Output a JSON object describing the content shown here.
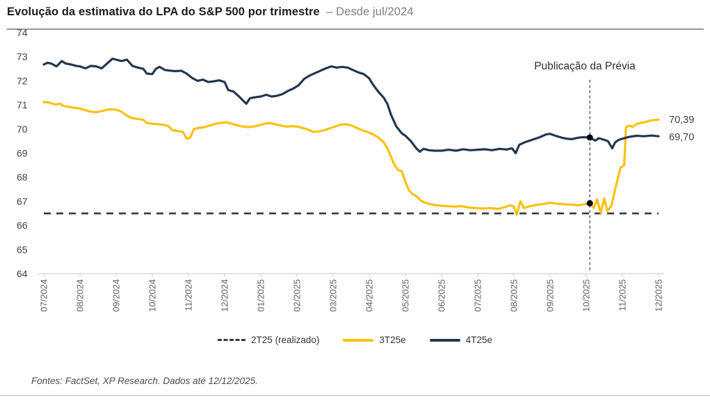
{
  "header": {
    "title_main": "Evolução da estimativa do LPA do S&P 500 por trimestre",
    "title_sub": "– Desde jul/2024"
  },
  "footer": {
    "source": "Fontes: FactSet, XP Research. Dados até 12/12/2025."
  },
  "chart_data": {
    "type": "line",
    "title": "Evolução da estimativa do LPA do S&P 500 por trimestre – Desde jul/2024",
    "xlabel": "",
    "ylabel": "",
    "ylim": [
      64,
      74
    ],
    "grid": false,
    "y_ticks": [
      "74",
      "73",
      "72",
      "71",
      "70",
      "69",
      "68",
      "67",
      "66",
      "65",
      "64"
    ],
    "y_tick_values": [
      74,
      73,
      72,
      71,
      70,
      69,
      68,
      67,
      66,
      65,
      64
    ],
    "x_ticks": [
      "07/2024",
      "08/2024",
      "09/2024",
      "10/2024",
      "11/2024",
      "12/2024",
      "01/2025",
      "02/2025",
      "03/2025",
      "04/2025",
      "05/2025",
      "06/2025",
      "07/2025",
      "08/2025",
      "09/2025",
      "10/2025",
      "11/2025",
      "12/2025"
    ],
    "legend": {
      "position": "bottom center"
    },
    "series": [
      {
        "name": "2T25 (realizado)",
        "style": "dashed",
        "color": "#3A3A3A",
        "points": [
          [
            0,
            66.5
          ],
          [
            17,
            66.5
          ]
        ]
      },
      {
        "name": "3T25e",
        "style": "solid",
        "color": "#FCC10C",
        "points": [
          [
            0,
            71.12
          ],
          [
            0.15,
            71.1
          ],
          [
            0.3,
            71.02
          ],
          [
            0.45,
            71.05
          ],
          [
            0.55,
            70.95
          ],
          [
            0.7,
            70.92
          ],
          [
            0.85,
            70.88
          ],
          [
            1.0,
            70.85
          ],
          [
            1.15,
            70.78
          ],
          [
            1.3,
            70.72
          ],
          [
            1.45,
            70.7
          ],
          [
            1.6,
            70.74
          ],
          [
            1.75,
            70.8
          ],
          [
            1.9,
            70.82
          ],
          [
            2.0,
            70.8
          ],
          [
            2.15,
            70.72
          ],
          [
            2.3,
            70.55
          ],
          [
            2.45,
            70.45
          ],
          [
            2.6,
            70.42
          ],
          [
            2.75,
            70.38
          ],
          [
            2.85,
            70.25
          ],
          [
            3.0,
            70.22
          ],
          [
            3.15,
            70.2
          ],
          [
            3.3,
            70.18
          ],
          [
            3.45,
            70.12
          ],
          [
            3.55,
            69.95
          ],
          [
            3.7,
            69.92
          ],
          [
            3.85,
            69.88
          ],
          [
            3.95,
            69.6
          ],
          [
            4.05,
            69.65
          ],
          [
            4.15,
            70.0
          ],
          [
            4.3,
            70.05
          ],
          [
            4.45,
            70.08
          ],
          [
            4.6,
            70.15
          ],
          [
            4.75,
            70.22
          ],
          [
            4.9,
            70.25
          ],
          [
            5.05,
            70.28
          ],
          [
            5.2,
            70.22
          ],
          [
            5.35,
            70.15
          ],
          [
            5.5,
            70.1
          ],
          [
            5.65,
            70.08
          ],
          [
            5.8,
            70.1
          ],
          [
            5.95,
            70.15
          ],
          [
            6.1,
            70.22
          ],
          [
            6.25,
            70.25
          ],
          [
            6.4,
            70.2
          ],
          [
            6.55,
            70.15
          ],
          [
            6.7,
            70.1
          ],
          [
            6.85,
            70.12
          ],
          [
            7.0,
            70.1
          ],
          [
            7.15,
            70.05
          ],
          [
            7.3,
            69.98
          ],
          [
            7.45,
            69.88
          ],
          [
            7.6,
            69.9
          ],
          [
            7.75,
            69.95
          ],
          [
            7.9,
            70.02
          ],
          [
            8.05,
            70.1
          ],
          [
            8.2,
            70.18
          ],
          [
            8.35,
            70.2
          ],
          [
            8.5,
            70.15
          ],
          [
            8.65,
            70.05
          ],
          [
            8.8,
            69.95
          ],
          [
            8.95,
            69.88
          ],
          [
            9.1,
            69.78
          ],
          [
            9.25,
            69.65
          ],
          [
            9.4,
            69.45
          ],
          [
            9.5,
            69.2
          ],
          [
            9.6,
            68.85
          ],
          [
            9.7,
            68.5
          ],
          [
            9.8,
            68.3
          ],
          [
            9.9,
            68.25
          ],
          [
            10.0,
            67.8
          ],
          [
            10.1,
            67.45
          ],
          [
            10.2,
            67.3
          ],
          [
            10.3,
            67.22
          ],
          [
            10.45,
            67.0
          ],
          [
            10.6,
            66.92
          ],
          [
            10.75,
            66.86
          ],
          [
            10.95,
            66.82
          ],
          [
            11.15,
            66.8
          ],
          [
            11.35,
            66.78
          ],
          [
            11.55,
            66.8
          ],
          [
            11.75,
            66.74
          ],
          [
            11.95,
            66.72
          ],
          [
            12.15,
            66.7
          ],
          [
            12.35,
            66.72
          ],
          [
            12.55,
            66.68
          ],
          [
            12.75,
            66.76
          ],
          [
            12.9,
            66.84
          ],
          [
            13.0,
            66.78
          ],
          [
            13.08,
            66.45
          ],
          [
            13.18,
            67.0
          ],
          [
            13.28,
            66.72
          ],
          [
            13.45,
            66.8
          ],
          [
            13.65,
            66.86
          ],
          [
            13.85,
            66.9
          ],
          [
            14.0,
            66.94
          ],
          [
            14.2,
            66.9
          ],
          [
            14.4,
            66.88
          ],
          [
            14.6,
            66.86
          ],
          [
            14.8,
            66.84
          ],
          [
            15.0,
            66.9
          ],
          [
            15.1,
            66.92
          ],
          [
            15.2,
            66.72
          ],
          [
            15.3,
            67.08
          ],
          [
            15.4,
            66.52
          ],
          [
            15.5,
            67.12
          ],
          [
            15.58,
            66.6
          ],
          [
            15.7,
            66.82
          ],
          [
            15.8,
            67.5
          ],
          [
            15.88,
            68.0
          ],
          [
            15.95,
            68.4
          ],
          [
            16.05,
            68.5
          ],
          [
            16.1,
            70.08
          ],
          [
            16.2,
            70.14
          ],
          [
            16.28,
            70.08
          ],
          [
            16.38,
            70.2
          ],
          [
            16.5,
            70.25
          ],
          [
            16.65,
            70.3
          ],
          [
            16.8,
            70.36
          ],
          [
            17.0,
            70.39
          ]
        ]
      },
      {
        "name": "4T25e",
        "style": "solid",
        "color": "#23374E",
        "points": [
          [
            0,
            72.68
          ],
          [
            0.1,
            72.75
          ],
          [
            0.2,
            72.72
          ],
          [
            0.35,
            72.6
          ],
          [
            0.5,
            72.82
          ],
          [
            0.6,
            72.72
          ],
          [
            0.75,
            72.68
          ],
          [
            0.9,
            72.62
          ],
          [
            1.0,
            72.6
          ],
          [
            1.15,
            72.52
          ],
          [
            1.3,
            72.62
          ],
          [
            1.45,
            72.6
          ],
          [
            1.6,
            72.52
          ],
          [
            1.75,
            72.72
          ],
          [
            1.9,
            72.92
          ],
          [
            2.0,
            72.88
          ],
          [
            2.15,
            72.82
          ],
          [
            2.3,
            72.88
          ],
          [
            2.45,
            72.62
          ],
          [
            2.6,
            72.55
          ],
          [
            2.75,
            72.5
          ],
          [
            2.85,
            72.3
          ],
          [
            3.0,
            72.28
          ],
          [
            3.1,
            72.5
          ],
          [
            3.2,
            72.58
          ],
          [
            3.35,
            72.45
          ],
          [
            3.5,
            72.42
          ],
          [
            3.65,
            72.4
          ],
          [
            3.8,
            72.42
          ],
          [
            3.95,
            72.3
          ],
          [
            4.1,
            72.12
          ],
          [
            4.25,
            72.0
          ],
          [
            4.4,
            72.05
          ],
          [
            4.55,
            71.95
          ],
          [
            4.7,
            71.98
          ],
          [
            4.85,
            72.02
          ],
          [
            5.0,
            71.95
          ],
          [
            5.1,
            71.62
          ],
          [
            5.25,
            71.55
          ],
          [
            5.4,
            71.35
          ],
          [
            5.55,
            71.12
          ],
          [
            5.6,
            71.05
          ],
          [
            5.7,
            71.28
          ],
          [
            5.85,
            71.32
          ],
          [
            6.0,
            71.35
          ],
          [
            6.15,
            71.42
          ],
          [
            6.3,
            71.35
          ],
          [
            6.45,
            71.38
          ],
          [
            6.6,
            71.45
          ],
          [
            6.75,
            71.58
          ],
          [
            6.9,
            71.68
          ],
          [
            7.05,
            71.82
          ],
          [
            7.2,
            72.08
          ],
          [
            7.35,
            72.22
          ],
          [
            7.5,
            72.32
          ],
          [
            7.65,
            72.42
          ],
          [
            7.8,
            72.52
          ],
          [
            7.95,
            72.6
          ],
          [
            8.1,
            72.55
          ],
          [
            8.25,
            72.58
          ],
          [
            8.4,
            72.55
          ],
          [
            8.55,
            72.45
          ],
          [
            8.7,
            72.35
          ],
          [
            8.85,
            72.28
          ],
          [
            9.0,
            72.1
          ],
          [
            9.1,
            71.85
          ],
          [
            9.25,
            71.55
          ],
          [
            9.4,
            71.3
          ],
          [
            9.5,
            71.05
          ],
          [
            9.6,
            70.6
          ],
          [
            9.75,
            70.1
          ],
          [
            9.9,
            69.82
          ],
          [
            10.0,
            69.72
          ],
          [
            10.15,
            69.5
          ],
          [
            10.3,
            69.2
          ],
          [
            10.4,
            69.06
          ],
          [
            10.5,
            69.18
          ],
          [
            10.65,
            69.12
          ],
          [
            10.8,
            69.1
          ],
          [
            11.0,
            69.1
          ],
          [
            11.2,
            69.14
          ],
          [
            11.4,
            69.1
          ],
          [
            11.6,
            69.16
          ],
          [
            11.8,
            69.12
          ],
          [
            12.0,
            69.14
          ],
          [
            12.2,
            69.16
          ],
          [
            12.4,
            69.12
          ],
          [
            12.6,
            69.18
          ],
          [
            12.8,
            69.15
          ],
          [
            12.95,
            69.2
          ],
          [
            13.05,
            69.0
          ],
          [
            13.15,
            69.35
          ],
          [
            13.3,
            69.45
          ],
          [
            13.5,
            69.55
          ],
          [
            13.7,
            69.65
          ],
          [
            13.9,
            69.78
          ],
          [
            14.0,
            69.8
          ],
          [
            14.15,
            69.72
          ],
          [
            14.3,
            69.65
          ],
          [
            14.45,
            69.6
          ],
          [
            14.6,
            69.58
          ],
          [
            14.75,
            69.63
          ],
          [
            14.9,
            69.66
          ],
          [
            15.1,
            69.65
          ],
          [
            15.25,
            69.52
          ],
          [
            15.35,
            69.62
          ],
          [
            15.5,
            69.55
          ],
          [
            15.6,
            69.5
          ],
          [
            15.72,
            69.2
          ],
          [
            15.8,
            69.45
          ],
          [
            15.9,
            69.55
          ],
          [
            16.05,
            69.62
          ],
          [
            16.2,
            69.68
          ],
          [
            16.4,
            69.72
          ],
          [
            16.6,
            69.7
          ],
          [
            16.8,
            69.73
          ],
          [
            17.0,
            69.7
          ]
        ]
      }
    ],
    "annotations": {
      "vline_label": "Publicação da Prévia",
      "vline_x_month": 15.1,
      "markers": [
        {
          "series": "4T25e",
          "month": 15.1,
          "value": 69.65
        },
        {
          "series": "3T25e",
          "month": 15.1,
          "value": 66.92
        }
      ],
      "end_label_yellow": "70,39",
      "end_label_navy": "69,70"
    }
  }
}
